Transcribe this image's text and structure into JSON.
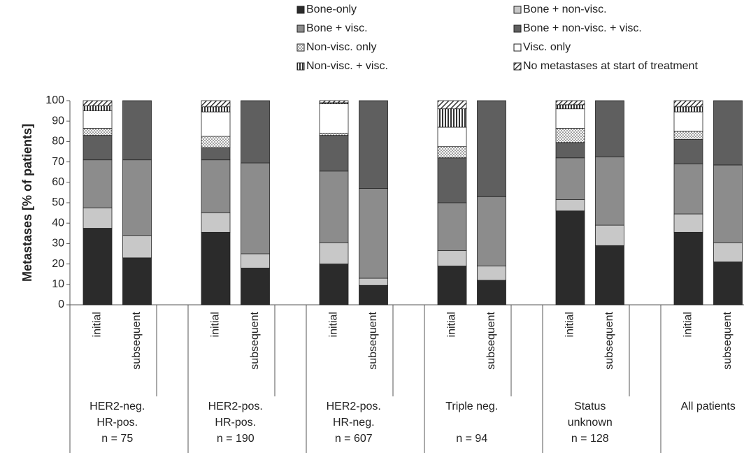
{
  "chart_data": {
    "type": "stacked_bar",
    "y_axis_label": "Metastases [% of patients]",
    "ylim": [
      0,
      100
    ],
    "yticks": [
      0,
      10,
      20,
      30,
      40,
      50,
      60,
      70,
      80,
      90,
      100
    ],
    "categories": [
      "initial",
      "subsequent",
      "initial",
      "subsequent",
      "initial",
      "subsequent",
      "initial",
      "subsequent",
      "initial",
      "subsequent",
      "initial",
      "subsequent"
    ],
    "groups": [
      [
        "HER2-neg.",
        "HR-pos.",
        "n = 75"
      ],
      [
        "HER2-pos.",
        "HR-pos.",
        "n = 190"
      ],
      [
        "HER2-pos.",
        "HR-neg.",
        "n = 607"
      ],
      [
        "Triple neg.",
        null,
        "n = 94"
      ],
      [
        "Status",
        "unknown",
        "n = 128"
      ],
      [
        "All patients"
      ]
    ],
    "series": [
      {
        "name": "Bone-only",
        "color": "#2b2b2b",
        "values": [
          37.5,
          23,
          35.5,
          18,
          20,
          9.5,
          19,
          12,
          46,
          29,
          35.5,
          21
        ]
      },
      {
        "name": "Bone + non-visc.",
        "color": "#c8c8c8",
        "values": [
          10,
          11,
          9.5,
          7,
          10.5,
          3.5,
          7.5,
          7,
          5.5,
          10,
          9,
          9.5
        ]
      },
      {
        "name": "Bone + visc.",
        "color": "#8c8c8c",
        "values": [
          23.5,
          37,
          26,
          44.5,
          35,
          44,
          23.5,
          34,
          20.5,
          33.5,
          24.5,
          38
        ]
      },
      {
        "name": "Bone + non-visc. + visc.",
        "color": "#5f5f5f",
        "values": [
          12,
          29,
          6,
          30.5,
          17.5,
          43,
          22,
          47,
          7.5,
          27.5,
          12,
          31.5
        ]
      },
      {
        "name": "Non-visc. only",
        "color": "#ffffff",
        "pattern": "dots",
        "values": [
          3.5,
          0,
          5.5,
          0,
          1,
          0,
          5.5,
          0,
          7,
          0,
          4,
          0
        ]
      },
      {
        "name": "Visc. only",
        "color": "#ffffff",
        "values": [
          8.5,
          0,
          12,
          0,
          14.5,
          0,
          9.5,
          0,
          9.5,
          0,
          9.5,
          0
        ]
      },
      {
        "name": "Non-visc. + visc.",
        "color": "#ffffff",
        "pattern": "vstripes",
        "values": [
          2.5,
          0,
          2.5,
          0,
          0.5,
          0,
          9,
          0,
          2,
          0,
          2.5,
          0
        ]
      },
      {
        "name": "No metastases at start of treatment",
        "color": "#ffffff",
        "pattern": "hatch",
        "values": [
          2.5,
          0,
          3,
          0,
          1,
          0,
          4,
          0,
          2,
          0,
          3,
          0
        ]
      }
    ]
  }
}
